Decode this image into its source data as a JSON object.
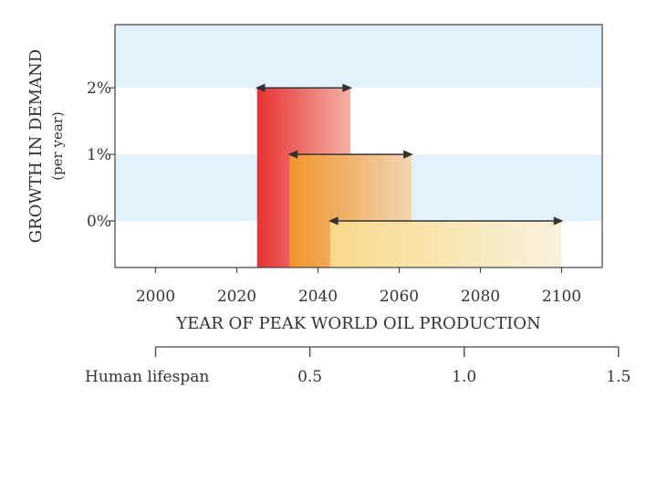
{
  "chart_data": {
    "type": "bar",
    "title": "",
    "xlabel": "YEAR OF PEAK WORLD OIL PRODUCTION",
    "ylabel": "GROWTH IN DEMAND",
    "ylabel_sub": "(per year)",
    "xlim": [
      1990,
      2110
    ],
    "ylim": [
      -0.7,
      2.95
    ],
    "x_ticks": [
      2000,
      2020,
      2040,
      2060,
      2080,
      2100
    ],
    "x_tick_labels": [
      "2000",
      "2020",
      "2040",
      "2060",
      "2080",
      "2100"
    ],
    "y_ticks": [
      0,
      1,
      2
    ],
    "y_tick_labels": [
      "0%",
      "1%",
      "2%"
    ],
    "bands": [
      {
        "name": "2% growth",
        "growth": 2,
        "x_start": 2025,
        "x_end": 2048,
        "color": "#e63838"
      },
      {
        "name": "1% growth",
        "growth": 1,
        "x_start": 2033,
        "x_end": 2063,
        "color": "#f2992f"
      },
      {
        "name": "0% growth",
        "growth": 0,
        "x_start": 2043,
        "x_end": 2100,
        "color": "#f8d987"
      }
    ],
    "lifespan_scale": {
      "label": "Human lifespan",
      "ticks": [
        0.5,
        1.0,
        1.5
      ],
      "tick_labels": [
        "0.5",
        "1.0",
        "1.5"
      ],
      "start_year": 2000,
      "years_per_unit": 76
    },
    "colors": {
      "stripe": "#e3f1fb",
      "axis": "#444444",
      "arrow": "#333333"
    }
  }
}
